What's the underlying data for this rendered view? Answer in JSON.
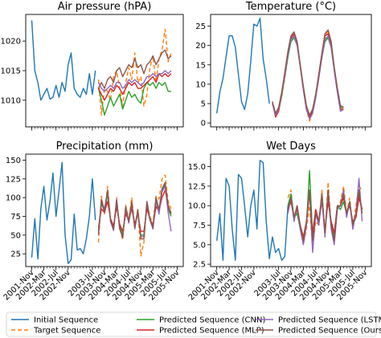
{
  "x_labels": [
    "2001-Nov",
    "2002-Mar",
    "2002-Jul",
    "2002-Nov",
    "2003-Jul",
    "2003-Nov",
    "2004-Mar",
    "2004-Jul",
    "2004-Nov",
    "2005-Mar",
    "2005-Jul",
    "2005-Nov"
  ],
  "legend": {
    "items": [
      {
        "label": "Initial Sequence",
        "color": "#1f77b4",
        "dashed": false
      },
      {
        "label": "Target Sequence",
        "color": "#ff7f0e",
        "dashed": true
      },
      {
        "label": "Predicted Sequence (CNN)",
        "color": "#2ca02c",
        "dashed": false
      },
      {
        "label": "Predicted Sequence (MLP)",
        "color": "#d62728",
        "dashed": false
      },
      {
        "label": "Predicted Sequence (LSTM)",
        "color": "#9467bd",
        "dashed": false
      },
      {
        "label": "Predicted Sequence (Ours)",
        "color": "#8c564b",
        "dashed": false
      }
    ]
  },
  "chart_data": [
    {
      "type": "line",
      "title": "Air pressure (hPA)",
      "ylim": [
        1005.5,
        1024.5
      ],
      "yticks": [
        1010,
        1015,
        1020
      ],
      "x_ticks": [
        0,
        4,
        8,
        12,
        20,
        24,
        28,
        32,
        36,
        40,
        44,
        48
      ],
      "series": [
        {
          "name": "Initial Sequence",
          "x_start": 0,
          "values": [
            1023.5,
            1015,
            1013,
            1010,
            1011,
            1012,
            1010.2,
            1010.5,
            1012.5,
            1010.5,
            1013,
            1011.5,
            1016,
            1018,
            1012,
            1011,
            1010.5,
            1012,
            1011,
            1014.5,
            1011,
            1015
          ]
        },
        {
          "name": "Target Sequence",
          "x_start": 22,
          "values": [
            1013.5,
            1007.5,
            1012,
            1011.5,
            1010,
            1014,
            1015,
            1012,
            1009,
            1013,
            1015.5,
            1013.5,
            1018,
            1013,
            1014,
            1009,
            1011,
            1015.5,
            1017.5,
            1013,
            1017,
            1018.5,
            1022,
            1016.5,
            1018
          ]
        },
        {
          "name": "Predicted Sequence (CNN)",
          "x_start": 22,
          "values": [
            1012,
            1010,
            1007.5,
            1009,
            1010.5,
            1009,
            1010,
            1011,
            1008.5,
            1010,
            1011.5,
            1010.5,
            1011,
            1010,
            1009.5,
            1012,
            1013,
            1012.5,
            1013,
            1012,
            1013,
            1012.5,
            1013,
            1011.5,
            1011.5
          ]
        },
        {
          "name": "Predicted Sequence (MLP)",
          "x_start": 22,
          "values": [
            1012,
            1011,
            1010,
            1011,
            1012,
            1011.5,
            1012.5,
            1012,
            1011,
            1012,
            1013,
            1012.5,
            1013,
            1012,
            1012,
            1012.5,
            1013,
            1013.5,
            1014,
            1013,
            1014.5,
            1014,
            1014.5,
            1014,
            1014.5
          ]
        },
        {
          "name": "Predicted Sequence (LSTM)",
          "x_start": 22,
          "values": [
            1013,
            1012,
            1011.5,
            1012,
            1012.5,
            1012,
            1013,
            1013,
            1012,
            1012.5,
            1013.5,
            1013,
            1013.5,
            1013,
            1012.5,
            1013,
            1014,
            1014,
            1014.5,
            1014,
            1014.5,
            1014.5,
            1015,
            1014.5,
            1015
          ]
        },
        {
          "name": "Predicted Sequence (Ours)",
          "x_start": 22,
          "values": [
            1012,
            1013,
            1012,
            1013.5,
            1014,
            1013,
            1015,
            1015.5,
            1014,
            1015,
            1016,
            1015.5,
            1017,
            1015.5,
            1016,
            1014.5,
            1016,
            1016.5,
            1017.5,
            1016,
            1017,
            1018,
            1018.5,
            1017,
            1017.5
          ]
        }
      ]
    },
    {
      "type": "line",
      "title": "Temperature (°C)",
      "ylim": [
        -1,
        28
      ],
      "yticks": [
        0,
        5,
        10,
        15,
        20,
        25
      ],
      "x_ticks": [
        0,
        4,
        8,
        12,
        20,
        24,
        28,
        32,
        36,
        40,
        44,
        48
      ],
      "series": [
        {
          "name": "Initial Sequence",
          "x_start": 0,
          "values": [
            2.5,
            8,
            11.5,
            17,
            22.5,
            22.5,
            19.5,
            12.5,
            5.5,
            3.5,
            7.5,
            16,
            25.5,
            25,
            27,
            16.5,
            11.5,
            5
          ]
        },
        {
          "name": "Target Sequence",
          "x_start": 18,
          "values": [
            5,
            2,
            3.5,
            7,
            11.5,
            17,
            21.5,
            22.5,
            21,
            14.5,
            8.5,
            3.5,
            0.5,
            2.5,
            6.5,
            11.5,
            17,
            22,
            24,
            20,
            14,
            9,
            4,
            3.5
          ]
        },
        {
          "name": "Predicted Sequence (CNN)",
          "x_start": 18,
          "values": [
            5,
            2,
            3,
            7,
            12,
            17,
            21,
            22,
            20,
            15,
            9,
            4,
            2,
            3.5,
            7,
            12,
            17,
            21,
            22,
            19.5,
            14,
            8.5,
            4,
            4
          ]
        },
        {
          "name": "Predicted Sequence (MLP)",
          "x_start": 18,
          "values": [
            5.5,
            1.5,
            3,
            7.5,
            12.5,
            18,
            22,
            23,
            20.5,
            15,
            9,
            3.5,
            1.5,
            3,
            7,
            12.5,
            18,
            22.5,
            23,
            20,
            14,
            8,
            3.5,
            3.5
          ]
        },
        {
          "name": "Predicted Sequence (LSTM)",
          "x_start": 18,
          "values": [
            5,
            2,
            3.5,
            7.5,
            12,
            17.5,
            21.5,
            22.5,
            20,
            14.5,
            8.5,
            3.5,
            1,
            2.5,
            6.5,
            11.5,
            17,
            21.5,
            22.5,
            19.5,
            13.5,
            8,
            3,
            3.5
          ]
        },
        {
          "name": "Predicted Sequence (Ours)",
          "x_start": 18,
          "values": [
            5.5,
            2.5,
            4,
            8,
            13,
            18.5,
            22.5,
            23.5,
            21,
            15,
            9.5,
            4.5,
            2,
            3.5,
            7.5,
            12.5,
            18,
            23,
            24,
            21,
            14.5,
            9,
            4.5,
            4
          ]
        }
      ]
    },
    {
      "type": "line",
      "title": "Precipitation (mm)",
      "ylim": [
        8,
        158
      ],
      "yticks": [
        25,
        50,
        75,
        100,
        125,
        150
      ],
      "x_ticks": [
        0,
        4,
        8,
        12,
        20,
        24,
        28,
        32,
        36,
        40,
        44,
        48
      ],
      "series": [
        {
          "name": "Initial Sequence",
          "x_start": 0,
          "values": [
            20,
            72,
            18,
            85,
            115,
            70,
            95,
            133,
            75,
            110,
            147,
            50,
            12,
            17,
            78,
            30,
            32,
            25,
            45,
            75,
            125,
            70
          ]
        },
        {
          "name": "Target Sequence",
          "x_start": 22,
          "values": [
            40,
            102,
            78,
            115,
            72,
            58,
            100,
            60,
            44,
            90,
            70,
            100,
            60,
            85,
            22,
            40,
            95,
            75,
            65,
            102,
            98,
            125,
            130,
            95,
            85
          ]
        },
        {
          "name": "Predicted Sequence (CNN)",
          "x_start": 22,
          "values": [
            55,
            92,
            82,
            105,
            70,
            60,
            95,
            62,
            50,
            82,
            68,
            90,
            62,
            80,
            50,
            50,
            92,
            70,
            60,
            95,
            80,
            110,
            118,
            85,
            75
          ]
        },
        {
          "name": "Predicted Sequence (MLP)",
          "x_start": 22,
          "values": [
            60,
            85,
            80,
            95,
            72,
            62,
            88,
            65,
            55,
            78,
            70,
            85,
            65,
            78,
            55,
            55,
            85,
            72,
            62,
            88,
            82,
            100,
            110,
            88,
            80
          ]
        },
        {
          "name": "Predicted Sequence (LSTM)",
          "x_start": 22,
          "values": [
            50,
            95,
            85,
            108,
            68,
            56,
            98,
            58,
            48,
            85,
            66,
            92,
            58,
            82,
            48,
            48,
            95,
            70,
            58,
            98,
            78,
            108,
            115,
            80,
            55
          ]
        },
        {
          "name": "Predicted Sequence (Ours)",
          "x_start": 22,
          "values": [
            52,
            98,
            80,
            110,
            70,
            58,
            96,
            60,
            46,
            88,
            68,
            95,
            60,
            84,
            45,
            45,
            94,
            72,
            60,
            100,
            84,
            112,
            120,
            90,
            78
          ]
        }
      ]
    },
    {
      "type": "line",
      "title": "Wet Days",
      "ylim": [
        2.2,
        16.6
      ],
      "yticks": [
        2.5,
        5.0,
        7.5,
        10.0,
        12.5,
        15.0
      ],
      "x_ticks": [
        0,
        4,
        8,
        12,
        20,
        24,
        28,
        32,
        36,
        40,
        44,
        48
      ],
      "series": [
        {
          "name": "Initial Sequence",
          "x_start": 0,
          "values": [
            5.5,
            9,
            3,
            13.5,
            12.5,
            7,
            3,
            14,
            13.5,
            10,
            6,
            10,
            12,
            7,
            15.8,
            15.5,
            8,
            3.2,
            6,
            4,
            4.5,
            3,
            3.5,
            10
          ]
        },
        {
          "name": "Target Sequence",
          "x_start": 23,
          "values": [
            11,
            12,
            8,
            9.5,
            7.5,
            5,
            7,
            10,
            4.5,
            8,
            7.5,
            12,
            6,
            13,
            7.5,
            5.5,
            9.5,
            10.5,
            12.5,
            9,
            11,
            7,
            10,
            12.5,
            12
          ]
        },
        {
          "name": "Predicted Sequence (CNN)",
          "x_start": 23,
          "values": [
            10,
            11.5,
            8.5,
            9,
            7,
            5.5,
            7.5,
            14.5,
            6,
            9.5,
            7.5,
            11.5,
            6.5,
            11,
            7.5,
            6,
            10,
            9.5,
            10.5,
            9,
            10.5,
            7.5,
            8.5,
            11.5,
            9.5
          ]
        },
        {
          "name": "Predicted Sequence (MLP)",
          "x_start": 23,
          "values": [
            9.5,
            10.5,
            8.5,
            9.5,
            7.5,
            6,
            8,
            11.5,
            6.5,
            9.5,
            8,
            10.5,
            7,
            10.5,
            8,
            6.5,
            10,
            10,
            11,
            9,
            10,
            8,
            8.5,
            11,
            9.5
          ]
        },
        {
          "name": "Predicted Sequence (LSTM)",
          "x_start": 23,
          "values": [
            9,
            11,
            8,
            10,
            7,
            5,
            7.5,
            12,
            4,
            9,
            7.5,
            11,
            6,
            12,
            7,
            5,
            9.5,
            10,
            12,
            8.5,
            10.5,
            7,
            9,
            13.5,
            8
          ]
        },
        {
          "name": "Predicted Sequence (Ours)",
          "x_start": 23,
          "values": [
            9.5,
            11,
            8.5,
            10,
            7.5,
            5.5,
            8,
            12,
            5.5,
            9,
            8,
            11.5,
            6.5,
            12,
            7.5,
            5.5,
            10,
            10,
            11.5,
            9,
            10.5,
            7.5,
            9,
            12,
            9
          ]
        }
      ]
    }
  ]
}
